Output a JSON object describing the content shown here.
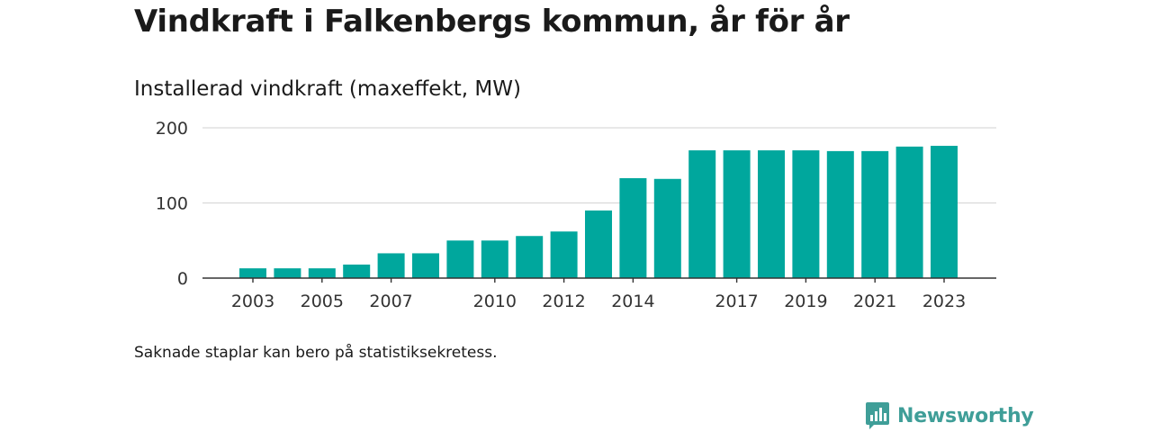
{
  "header": {
    "title": "Vindkraft i Falkenbergs kommun, år för år"
  },
  "chart_data": {
    "type": "bar",
    "title": "",
    "subtitle": "Installerad vindkraft (maxeffekt, MW)",
    "xlabel": "",
    "ylabel": "",
    "ylim": [
      0,
      200
    ],
    "yticks": [
      0,
      100,
      200
    ],
    "grid": true,
    "color": "#00a79d",
    "categories": [
      "2003",
      "2004",
      "2005",
      "2006",
      "2007",
      "2008",
      "2009",
      "2010",
      "2011",
      "2012",
      "2013",
      "2014",
      "2015",
      "2016",
      "2017",
      "2018",
      "2019",
      "2020",
      "2021",
      "2022",
      "2023"
    ],
    "xtick_labels": [
      "2003",
      "2005",
      "2007",
      "2010",
      "2012",
      "2014",
      "2017",
      "2019",
      "2021",
      "2023"
    ],
    "values": [
      13,
      13,
      13,
      18,
      33,
      33,
      50,
      50,
      56,
      62,
      90,
      133,
      132,
      170,
      170,
      170,
      170,
      169,
      169,
      175,
      176
    ]
  },
  "footer": {
    "note": "Saknade staplar kan bero på statistiksekretess.",
    "brand": "Newsworthy",
    "brand_color": "#3f9e98",
    "logo_icon": "newsworthy-logo-icon"
  }
}
